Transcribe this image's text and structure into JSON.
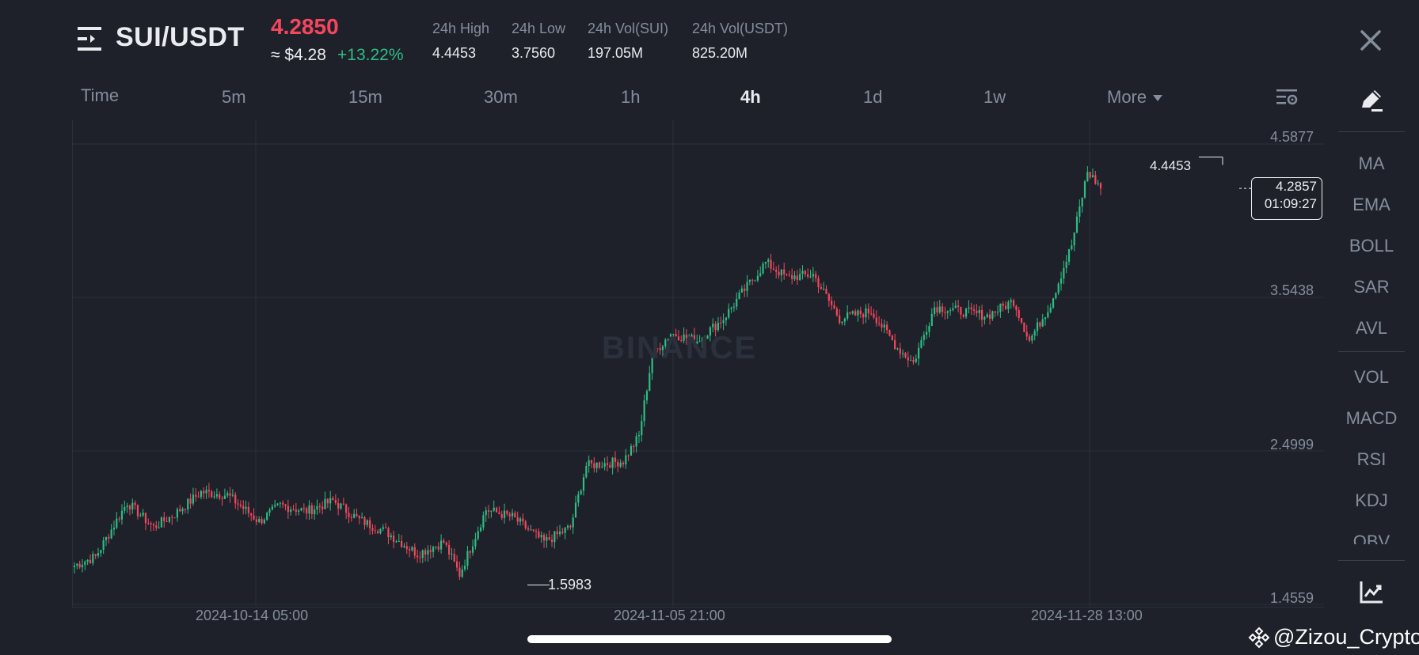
{
  "header": {
    "pair": "SUI/USDT",
    "last_price": "4.2850",
    "usd_price": "≈ $4.28",
    "change_pct": "+13.22%",
    "stats": [
      {
        "label": "24h High",
        "value": "4.4453"
      },
      {
        "label": "24h Low",
        "value": "3.7560"
      },
      {
        "label": "24h Vol(SUI)",
        "value": "197.05M"
      },
      {
        "label": "24h Vol(USDT)",
        "value": "825.20M"
      }
    ]
  },
  "timeframes": {
    "time_label": "Time",
    "options": [
      "5m",
      "15m",
      "30m",
      "1h",
      "4h",
      "1d",
      "1w"
    ],
    "active": "4h",
    "more_label": "More"
  },
  "chart": {
    "y_labels": [
      "4.5877",
      "3.5438",
      "2.4999",
      "1.4559"
    ],
    "x_labels": [
      "2024-10-14 05:00",
      "2024-11-05 21:00",
      "2024-11-28 13:00"
    ],
    "high_marker": "4.4453",
    "low_marker": "1.5983",
    "current_price": "4.2857",
    "countdown": "01:09:27",
    "watermark": "BINANCE",
    "colors": {
      "up": "#2ebd85",
      "down": "#f6465d",
      "background": "#1e2129",
      "grid": "#2b3139"
    }
  },
  "chart_data": {
    "type": "candlestick",
    "ylim": [
      1.4559,
      4.5877
    ],
    "y_ticks": [
      4.5877,
      3.5438,
      2.4999,
      1.4559
    ],
    "x_ticks": [
      "2024-10-14 05:00",
      "2024-11-05 21:00",
      "2024-11-28 13:00"
    ],
    "anchors": [
      {
        "i": 0,
        "v": 1.72
      },
      {
        "i": 8,
        "v": 1.78
      },
      {
        "i": 20,
        "v": 2.15
      },
      {
        "i": 30,
        "v": 1.98
      },
      {
        "i": 38,
        "v": 2.07
      },
      {
        "i": 48,
        "v": 2.22
      },
      {
        "i": 58,
        "v": 2.2
      },
      {
        "i": 70,
        "v": 2.02
      },
      {
        "i": 78,
        "v": 2.13
      },
      {
        "i": 88,
        "v": 2.09
      },
      {
        "i": 98,
        "v": 2.16
      },
      {
        "i": 108,
        "v": 2.03
      },
      {
        "i": 118,
        "v": 1.95
      },
      {
        "i": 130,
        "v": 1.8
      },
      {
        "i": 140,
        "v": 1.88
      },
      {
        "i": 146,
        "v": 1.66
      },
      {
        "i": 156,
        "v": 2.1
      },
      {
        "i": 166,
        "v": 2.05
      },
      {
        "i": 178,
        "v": 1.88
      },
      {
        "i": 188,
        "v": 1.98
      },
      {
        "i": 194,
        "v": 2.4
      },
      {
        "i": 208,
        "v": 2.43
      },
      {
        "i": 214,
        "v": 2.6
      },
      {
        "i": 219,
        "v": 3.15
      },
      {
        "i": 226,
        "v": 3.3
      },
      {
        "i": 236,
        "v": 3.25
      },
      {
        "i": 246,
        "v": 3.4
      },
      {
        "i": 252,
        "v": 3.55
      },
      {
        "i": 262,
        "v": 3.78
      },
      {
        "i": 270,
        "v": 3.68
      },
      {
        "i": 280,
        "v": 3.7
      },
      {
        "i": 290,
        "v": 3.4
      },
      {
        "i": 302,
        "v": 3.45
      },
      {
        "i": 312,
        "v": 3.2
      },
      {
        "i": 318,
        "v": 3.1
      },
      {
        "i": 326,
        "v": 3.48
      },
      {
        "i": 336,
        "v": 3.45
      },
      {
        "i": 346,
        "v": 3.42
      },
      {
        "i": 356,
        "v": 3.52
      },
      {
        "i": 362,
        "v": 3.25
      },
      {
        "i": 370,
        "v": 3.5
      },
      {
        "i": 378,
        "v": 3.9
      },
      {
        "i": 384,
        "v": 4.4
      },
      {
        "i": 389,
        "v": 4.29
      }
    ],
    "total_candles": 390
  },
  "indicators": {
    "items": [
      "MA",
      "EMA",
      "BOLL",
      "SAR",
      "AVL",
      "VOL",
      "MACD",
      "RSI",
      "KDJ",
      "OBV"
    ]
  },
  "footer": {
    "handle": "@Zizou_Crypto"
  }
}
